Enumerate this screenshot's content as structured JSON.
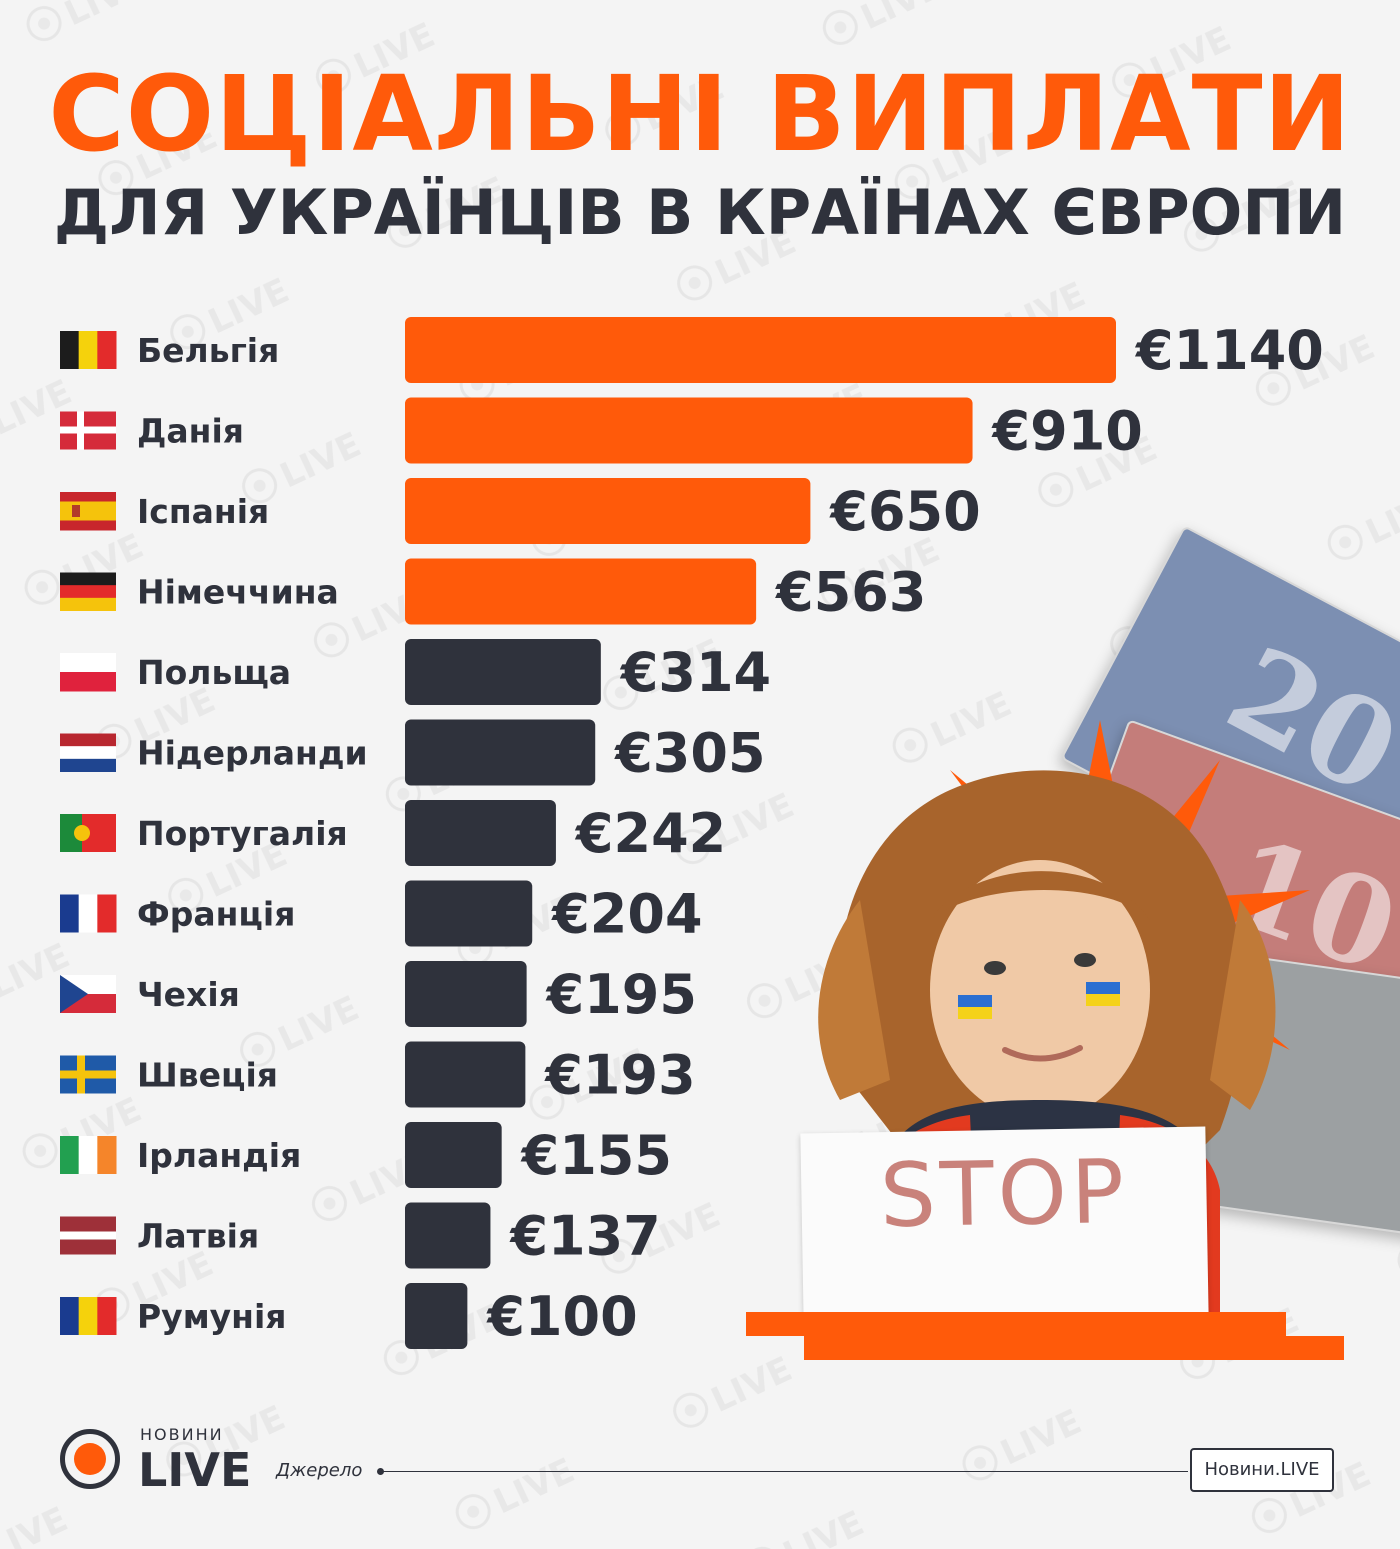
{
  "header": {
    "title": "СОЦІАЛЬНІ ВИПЛАТИ",
    "subtitle": "ДЛЯ УКРАЇНЦІВ В КРАЇНАХ ЄВРОПИ"
  },
  "chart_data": {
    "type": "bar",
    "orientation": "horizontal",
    "title": "СОЦІАЛЬНІ ВИПЛАТИ",
    "subtitle": "ДЛЯ УКРАЇНЦІВ В КРАЇНАХ ЄВРОПИ",
    "categories": [
      "Бельгія",
      "Данія",
      "Іспанія",
      "Німеччина",
      "Польща",
      "Нідерланди",
      "Португалія",
      "Франція",
      "Чехія",
      "Швеція",
      "Ірландія",
      "Латвія",
      "Румунія"
    ],
    "values": [
      1140,
      910,
      650,
      563,
      314,
      305,
      242,
      204,
      195,
      193,
      155,
      137,
      100
    ],
    "value_labels": [
      "€1140",
      "€910",
      "€650",
      "€563",
      "€314",
      "€305",
      "€242",
      "€204",
      "€195",
      "€193",
      "€155",
      "€137",
      "€100"
    ],
    "flags": [
      "belgium-flag-icon",
      "denmark-flag-icon",
      "spain-flag-icon",
      "germany-flag-icon",
      "poland-flag-icon",
      "netherlands-flag-icon",
      "portugal-flag-icon",
      "france-flag-icon",
      "czechia-flag-icon",
      "sweden-flag-icon",
      "ireland-flag-icon",
      "latvia-flag-icon",
      "romania-flag-icon"
    ],
    "bar_colors": [
      "#ff5a0a",
      "#ff5a0a",
      "#ff5a0a",
      "#ff5a0a",
      "#2f323c",
      "#2f323c",
      "#2f323c",
      "#2f323c",
      "#2f323c",
      "#2f323c",
      "#2f323c",
      "#2f323c",
      "#2f323c"
    ],
    "grid": false,
    "legend": "none"
  },
  "colors": {
    "accent": "#ff5a0a",
    "dark": "#2f323c",
    "background": "#f4f4f4"
  },
  "image": {
    "sign_text": "STOP",
    "banknote_20": "20",
    "banknote_10": "10"
  },
  "footer": {
    "logo_small": "НОВИНИ",
    "logo_big": "LIVE",
    "source_label": "Джерело",
    "source_value": "Новини.LIVE"
  }
}
